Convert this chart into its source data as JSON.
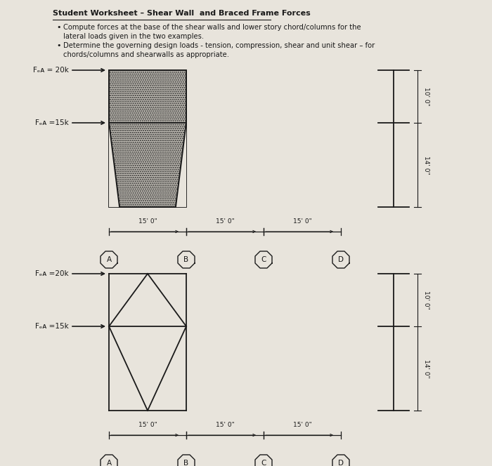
{
  "title": "Student Worksheet – Shear Wall  and Braced Frame Forces",
  "bullet1_line1": "Compute forces at the base of the shear walls and lower story chord/columns for the",
  "bullet1_line2": "lateral loads given in the two examples.",
  "bullet2_line1": "Determine the governing design loads - tension, compression, shear and unit shear – for",
  "bullet2_line2": "chords/columns and shearwalls as appropriate.",
  "bg_color": "#e8e4dc",
  "black": "#1a1a1a",
  "wall_hatch_color": "#c8c4bc",
  "feq1_top": "Fₑᴀ = 20k",
  "feq1_bot": "Fₑᴀ =15k",
  "feq2_top": "Fₑᴀ =20k",
  "feq2_bot": "Fₑᴀ =15k",
  "dim_15": "15' 0\"",
  "dim_10": "10' 0\"",
  "dim_14": "14' 0\"",
  "nodes": [
    "A",
    "B",
    "C",
    "D"
  ]
}
